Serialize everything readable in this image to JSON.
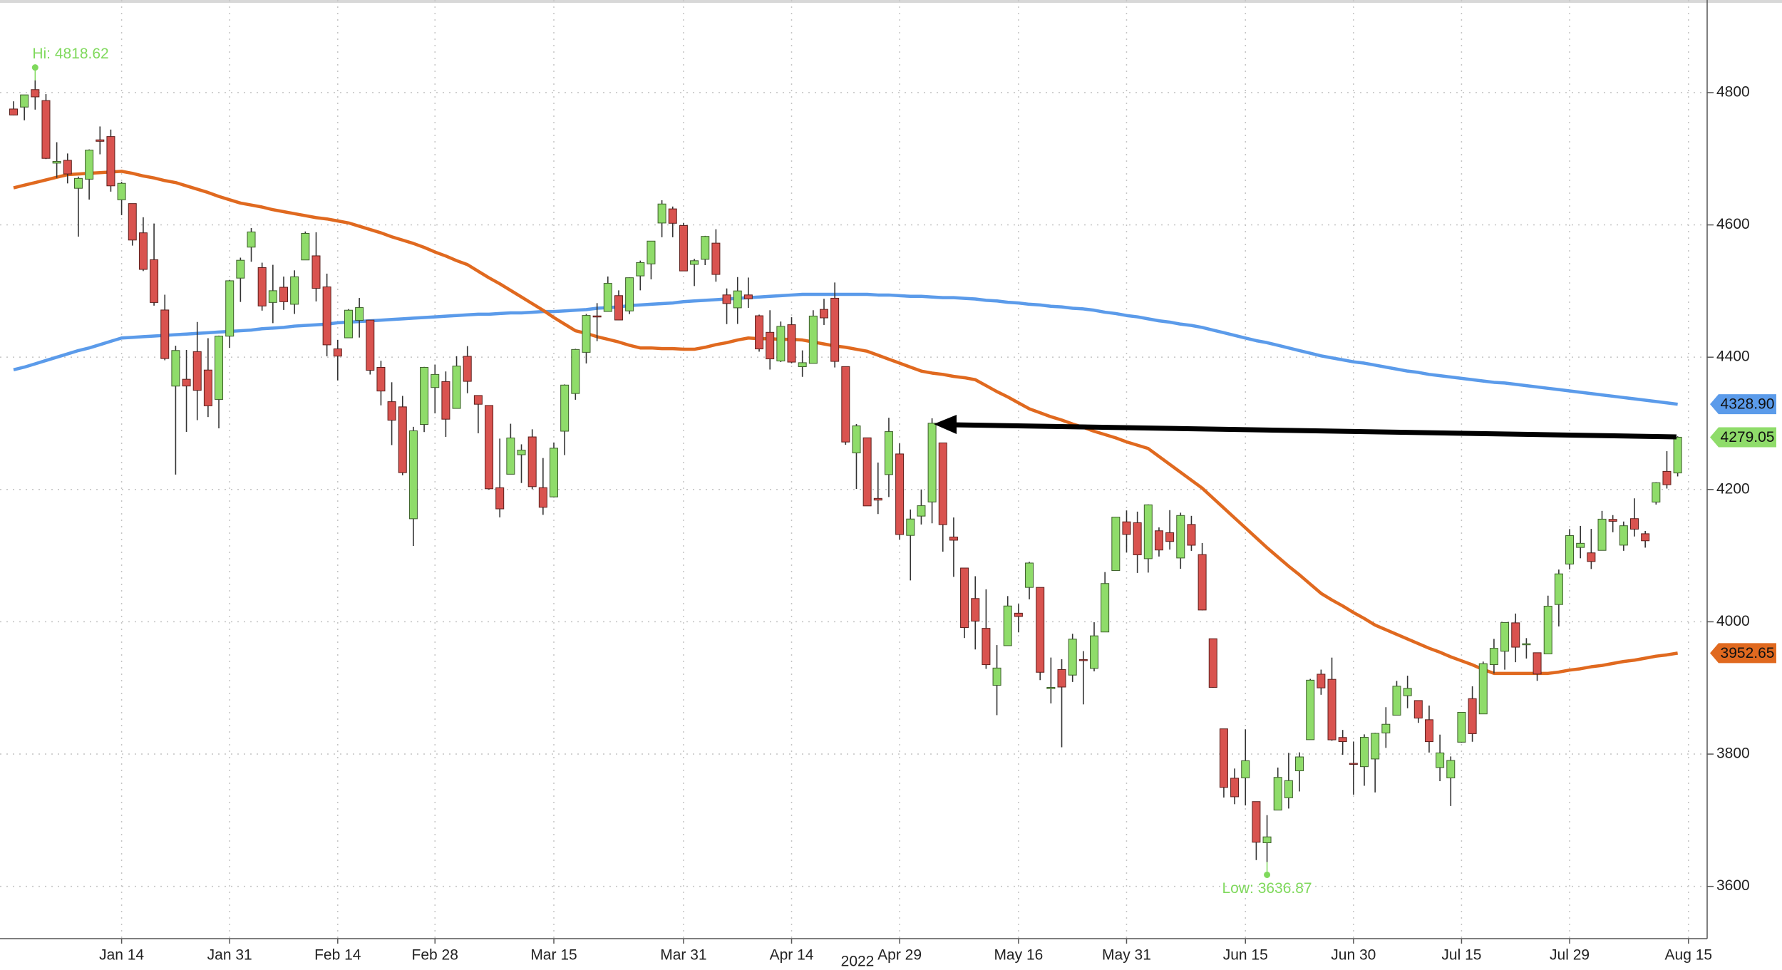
{
  "chart_data": {
    "type": "candlestick",
    "xlabel": "2022",
    "categories": [
      null,
      null,
      null,
      null,
      null,
      null,
      null,
      null,
      null,
      null,
      "Jan 14",
      null,
      null,
      null,
      null,
      null,
      null,
      null,
      null,
      null,
      "Jan 31",
      null,
      null,
      null,
      null,
      null,
      null,
      null,
      null,
      null,
      "Feb 14",
      null,
      null,
      null,
      null,
      null,
      null,
      null,
      null,
      "Feb 28",
      null,
      null,
      null,
      null,
      null,
      null,
      null,
      null,
      null,
      null,
      "Mar 15",
      null,
      null,
      null,
      null,
      null,
      null,
      null,
      null,
      null,
      null,
      null,
      "Mar 31",
      null,
      null,
      null,
      null,
      null,
      null,
      null,
      null,
      null,
      "Apr 14",
      null,
      null,
      null,
      null,
      null,
      null,
      null,
      null,
      null,
      "Apr 29",
      null,
      null,
      null,
      null,
      null,
      null,
      null,
      null,
      null,
      null,
      "May 16",
      null,
      null,
      null,
      null,
      null,
      null,
      null,
      null,
      null,
      "May 31",
      null,
      null,
      null,
      null,
      null,
      null,
      null,
      null,
      null,
      null,
      "Jun 15",
      null,
      null,
      null,
      null,
      null,
      null,
      null,
      null,
      null,
      "Jun 30",
      null,
      null,
      null,
      null,
      null,
      null,
      null,
      null,
      null,
      "Jul 15",
      null,
      null,
      null,
      null,
      null,
      null,
      null,
      null,
      null,
      "Jul 29",
      null,
      null,
      null,
      null,
      null,
      null,
      null,
      null,
      null,
      null,
      "Aug 15"
    ],
    "open": [
      4775.21,
      4778.14,
      4804.51,
      4787.99,
      4693.39,
      4697.66,
      4655.34,
      4669.14,
      4728.59,
      4733.56,
      4637.99,
      4632.24,
      4588.03,
      4547.35,
      4471.38,
      4356.32,
      4366.64,
      4408.43,
      4380.58,
      4336.19,
      4431.79,
      4519.57,
      4566.39,
      4535.41,
      4482.79,
      4505.75,
      4480.02,
      4547.0,
      4553.24,
      4506.27,
      4412.61,
      4429.28,
      4455.75,
      4456.06,
      4384.57,
      4332.74,
      4324.93,
      4155.77,
      4298.38,
      4354.17,
      4363.14,
      4322.56,
      4401.31,
      4342.12,
      4327.01,
      4202.66,
      4223.1,
      4252.55,
      4279.5,
      4202.75,
      4188.82,
      4288.14,
      4345.11,
      4407.34,
      4462.4,
      4469.1,
      4493.1,
      4469.98,
      4522.91,
      4541.09,
      4602.86,
      4624.2,
      4599.02,
      4540.32,
      4547.97,
      4572.45,
      4494.17,
      4474.65,
      4494.15,
      4462.64,
      4437.59,
      4394.3,
      4449.12,
      4385.63,
      4390.63,
      4472.26,
      4489.17,
      4385.83,
      4255.34,
      4278.14,
      4186.52,
      4222.58,
      4253.75,
      4130.61,
      4159.78,
      4181.18,
      4270.43,
      4128.17,
      4081.27,
      4035.18,
      3990.08,
      3903.95,
      3963.9,
      4013.02,
      4052.0,
      4051.98,
      3899.0,
      3927.76,
      3919.42,
      3942.94,
      3929.59,
      3984.6,
      4077.43,
      4151.09,
      4149.78,
      4095.41,
      4137.57,
      4134.72,
      4096.47,
      4147.12,
      4101.65,
      3974.39,
      3838.15,
      3763.52,
      3764.05,
      3728.18,
      3665.9,
      3715.31,
      3733.89,
      3774.71,
      3821.75,
      3920.76,
      3913.0,
      3825.09,
      3785.99,
      3781.0,
      3792.61,
      3831.98,
      3858.85,
      3888.26,
      3880.94,
      3851.95,
      3779.67,
      3763.99,
      3818.0,
      3883.79,
      3860.73,
      3935.32,
      3955.47,
      3998.43,
      3965.72,
      3953.22,
      3951.43,
      4026.13,
      4087.33,
      4112.38,
      4104.21,
      4107.96,
      4154.85,
      4115.87,
      4155.93,
      4133.11,
      4181.02,
      4227.4,
      4225.02,
      null
    ],
    "high": [
      4786.83,
      4796.64,
      4818.62,
      4797.7,
      4725.01,
      4707.95,
      4673.02,
      4714.13,
      4748.83,
      4744.13,
      4665.13,
      4632.24,
      4611.55,
      4602.11,
      4494.52,
      4417.35,
      4411.01,
      4453.23,
      4428.74,
      4432.72,
      4516.89,
      4550.49,
      4595.31,
      4542.88,
      4539.66,
      4521.86,
      4531.32,
      4590.03,
      4588.92,
      4526.33,
      4426.22,
      4472.77,
      4489.55,
      4456.06,
      4394.6,
      4362.12,
      4341.51,
      4294.73,
      4385.34,
      4388.84,
      4378.45,
      4401.48,
      4416.78,
      4342.12,
      4327.01,
      4276.94,
      4299.4,
      4268.28,
      4291.01,
      4247.57,
      4271.05,
      4358.9,
      4412.67,
      4465.4,
      4481.75,
      4522.0,
      4501.07,
      4520.58,
      4546.03,
      4575.65,
      4637.3,
      4627.77,
      4603.07,
      4548.7,
      4583.5,
      4593.45,
      4503.94,
      4521.16,
      4520.41,
      4464.35,
      4471.0,
      4453.92,
      4460.46,
      4410.31,
      4471.03,
      4488.29,
      4512.94,
      4385.83,
      4299.02,
      4278.14,
      4240.71,
      4308.45,
      4269.68,
      4169.81,
      4200.1,
      4307.66,
      4270.43,
      4157.69,
      4081.27,
      4068.82,
      4049.09,
      3964.8,
      4038.88,
      4026.97,
      4090.72,
      4051.98,
      3945.96,
      3943.42,
      3981.88,
      3955.68,
      3999.33,
      4075.14,
      4158.49,
      4168.34,
      4166.54,
      4177.51,
      4142.67,
      4168.78,
      4164.86,
      4160.14,
      4119.1,
      3974.39,
      3838.15,
      3778.18,
      3837.56,
      3728.18,
      3707.71,
      3779.65,
      3801.79,
      3802.58,
      3913.65,
      3927.72,
      3945.86,
      3836.5,
      3818.99,
      3829.82,
      3832.19,
      3870.91,
      3910.63,
      3918.5,
      3880.94,
      3873.41,
      3829.44,
      3796.41,
      3863.62,
      3902.44,
      3939.81,
      3974.13,
      3999.29,
      4012.44,
      3975.3,
      3953.22,
      4039.56,
      4078.95,
      4140.15,
      4144.95,
      4140.47,
      4167.66,
      4161.29,
      4151.58,
      4186.62,
      4137.3,
      4211.03,
      4257.91,
      4280.47,
      null
    ],
    "low": [
      4765.75,
      4758.17,
      4774.27,
      4699.44,
      4671.26,
      4662.74,
      4582.24,
      4638.27,
      4706.71,
      4650.29,
      4614.75,
      4568.7,
      4530.2,
      4477.95,
      4395.34,
      4222.62,
      4287.11,
      4304.8,
      4309.5,
      4292.46,
      4414.02,
      4483.53,
      4544.32,
      4470.39,
      4451.5,
      4471.47,
      4465.4,
      4547.0,
      4484.31,
      4401.41,
      4364.84,
      4429.28,
      4429.68,
      4373.81,
      4327.22,
      4267.11,
      4221.51,
      4114.65,
      4286.83,
      4315.12,
      4279.54,
      4322.56,
      4345.56,
      4284.98,
      4199.85,
      4157.87,
      4223.1,
      4209.8,
      4200.49,
      4161.72,
      4187.9,
      4251.99,
      4335.65,
      4390.57,
      4424.3,
      4469.1,
      4455.81,
      4465.17,
      4501.07,
      4517.69,
      4581.32,
      4581.32,
      4530.41,
      4507.57,
      4539.21,
      4514.17,
      4450.04,
      4450.3,
      4474.6,
      4408.38,
      4381.34,
      4392.7,
      4390.77,
      4370.3,
      4390.63,
      4448.76,
      4384.47,
      4267.62,
      4200.82,
      4175.04,
      4162.9,
      4188.63,
      4124.28,
      4062.51,
      4147.08,
      4148.91,
      4106.01,
      4067.91,
      3975.48,
      3958.17,
      3928.82,
      3858.87,
      3963.9,
      3983.99,
      4033.93,
      3911.91,
      3876.58,
      3810.32,
      3909.04,
      3875.13,
      3925.03,
      3984.6,
      4077.43,
      4104.88,
      4073.85,
      4074.37,
      4098.67,
      4109.18,
      4080.19,
      4107.2,
      4017.17,
      3900.16,
      3734.3,
      3724.27,
      3722.3,
      3639.77,
      3636.87,
      3715.31,
      3717.69,
      3743.52,
      3821.75,
      3889.66,
      3820.14,
      3799.02,
      3738.67,
      3752.1,
      3742.06,
      3809.37,
      3858.85,
      3869.34,
      3847.22,
      3802.36,
      3759.07,
      3721.56,
      3817.18,
      3818.63,
      3860.73,
      3922.03,
      3927.64,
      3938.85,
      3944.46,
      3910.74,
      3951.43,
      3992.97,
      4079.22,
      4096.02,
      4079.81,
      4107.96,
      4135.42,
      4107.31,
      4128.97,
      4112.09,
      4177.26,
      4201.41,
      4219.78,
      null
    ],
    "close": [
      4766.18,
      4796.56,
      4793.54,
      4700.58,
      4696.05,
      4677.03,
      4670.29,
      4713.07,
      4726.35,
      4659.03,
      4662.85,
      4577.11,
      4532.76,
      4482.73,
      4397.94,
      4410.13,
      4356.45,
      4349.93,
      4326.51,
      4431.85,
      4515.55,
      4546.54,
      4589.38,
      4477.44,
      4500.53,
      4483.87,
      4521.54,
      4587.18,
      4504.08,
      4418.64,
      4401.67,
      4471.07,
      4475.01,
      4380.26,
      4348.87,
      4304.76,
      4225.5,
      4288.7,
      4384.65,
      4373.94,
      4306.26,
      4386.54,
      4363.49,
      4328.87,
      4201.09,
      4170.7,
      4277.88,
      4259.52,
      4204.31,
      4173.11,
      4262.45,
      4357.86,
      4411.67,
      4463.12,
      4461.18,
      4511.61,
      4456.24,
      4520.16,
      4543.06,
      4575.52,
      4631.6,
      4602.45,
      4530.41,
      4545.86,
      4582.64,
      4525.12,
      4481.15,
      4500.21,
      4488.28,
      4412.53,
      4397.45,
      4446.59,
      4392.59,
      4391.69,
      4462.21,
      4459.45,
      4393.66,
      4271.78,
      4296.12,
      4175.2,
      4183.96,
      4287.5,
      4131.93,
      4155.38,
      4175.48,
      4300.17,
      4146.87,
      4123.34,
      3991.24,
      4001.05,
      3935.18,
      3930.08,
      4023.89,
      4008.01,
      4088.85,
      3923.68,
      3900.79,
      3901.36,
      3973.75,
      3941.48,
      3978.73,
      4057.84,
      4158.24,
      4132.15,
      4101.23,
      4176.82,
      4108.54,
      4121.43,
      4160.68,
      4115.77,
      4017.82,
      3900.86,
      3749.63,
      3735.48,
      3789.99,
      3666.77,
      3674.84,
      3764.79,
      3759.89,
      3795.73,
      3911.74,
      3900.11,
      3821.55,
      3818.83,
      3785.38,
      3825.33,
      3831.39,
      3845.08,
      3902.62,
      3899.38,
      3854.43,
      3818.8,
      3801.78,
      3790.38,
      3863.16,
      3830.85,
      3936.69,
      3959.9,
      3998.95,
      3961.63,
      3966.84,
      3921.05,
      4023.61,
      4072.43,
      4130.29,
      4118.63,
      4091.19,
      4155.17,
      4151.94,
      4145.19,
      4140.06,
      4122.47,
      4210.24,
      4207.27,
      4279.05,
      null
    ],
    "up_color": "#8fdc6a",
    "down_color": "#d9534f",
    "series": [
      {
        "color": "#5b9bea",
        "values": [
          4381,
          4385,
          4390,
          4395,
          4400,
          4405,
          4410,
          4414,
          4419,
          4424,
          4429,
          4430,
          4431,
          4432,
          4433,
          4434,
          4435,
          4436,
          4437,
          4438,
          4439,
          4440,
          4441,
          4443,
          4444,
          4445,
          4447,
          4448,
          4449,
          4450,
          4452,
          4453,
          4454,
          4455,
          4456,
          4457,
          4458,
          4459,
          4460,
          4461,
          4462,
          4463,
          4464,
          4465,
          4465,
          4466,
          4467,
          4467,
          4468,
          4469,
          4469,
          4470,
          4471,
          4472,
          4474,
          4475,
          4476,
          4478,
          4479,
          4480,
          4481,
          4482,
          4484,
          4485,
          4486,
          4487,
          4488,
          4489,
          4490,
          4491,
          4492,
          4493,
          4494,
          4495,
          4495,
          4495,
          4495,
          4495,
          4495,
          4495,
          4494,
          4494,
          4493,
          4492,
          4492,
          4491,
          4490,
          4490,
          4489,
          4488,
          4486,
          4485,
          4483,
          4482,
          4480,
          4479,
          4477,
          4476,
          4474,
          4473,
          4471,
          4468,
          4466,
          4463,
          4461,
          4458,
          4455,
          4453,
          4450,
          4448,
          4445,
          4441,
          4437,
          4433,
          4429,
          4425,
          4422,
          4418,
          4414,
          4410,
          4406,
          4402,
          4399,
          4396,
          4393,
          4391,
          4388,
          4385,
          4382,
          4379,
          4377,
          4374,
          4372,
          4370,
          4368,
          4366,
          4364,
          4362,
          4361,
          4359,
          4357,
          4355,
          4353,
          4351,
          4349,
          4347,
          4345,
          4343,
          4341,
          4339,
          4337,
          4335,
          4333,
          4331,
          4328.9,
          null
        ]
      },
      {
        "color": "#e0691f",
        "values": [
          4656,
          4660,
          4664,
          4668,
          4672,
          4676,
          4677,
          4678,
          4679,
          4680,
          4681,
          4678,
          4674,
          4671,
          4667,
          4664,
          4659,
          4654,
          4649,
          4643,
          4638,
          4633,
          4630,
          4627,
          4623,
          4620,
          4617,
          4614,
          4611,
          4609,
          4606,
          4603,
          4598,
          4593,
          4588,
          4582,
          4577,
          4572,
          4566,
          4559,
          4553,
          4546,
          4540,
          4530,
          4520,
          4511,
          4501,
          4491,
          4481,
          4471,
          4460,
          4450,
          4440,
          4436,
          4431,
          4427,
          4423,
          4418,
          4414,
          4414,
          4413,
          4413,
          4412,
          4412,
          4415,
          4419,
          4422,
          4426,
          4429,
          4428,
          4428,
          4427,
          4427,
          4426,
          4423,
          4420,
          4417,
          4415,
          4412,
          4409,
          4403,
          4397,
          4391,
          4385,
          4379,
          4376,
          4374,
          4371,
          4369,
          4366,
          4357,
          4348,
          4340,
          4331,
          4322,
          4316,
          4310,
          4305,
          4299,
          4294,
          4288,
          4283,
          4278,
          4272,
          4267,
          4262,
          4250,
          4238,
          4226,
          4214,
          4202,
          4187,
          4172,
          4157,
          4142,
          4127,
          4112,
          4098,
          4084,
          4071,
          4057,
          4043,
          4033,
          4024,
          4014,
          4005,
          3995,
          3988,
          3981,
          3974,
          3967,
          3960,
          3954,
          3947,
          3941,
          3935,
          3928,
          3922,
          3922,
          3922,
          3922,
          3922,
          3922,
          3924,
          3927,
          3929,
          3932,
          3934,
          3937,
          3940,
          3942,
          3945,
          3948,
          3950,
          3952.65,
          null
        ]
      }
    ],
    "tags": [
      {
        "label": "4328.90",
        "value": 4328.9,
        "color": "#5b9bea"
      },
      {
        "label": "4279.05",
        "value": 4279.05,
        "color": "#8fdc6a"
      },
      {
        "label": "3952.65",
        "value": 3952.65,
        "color": "#e0691f"
      }
    ],
    "annotations": [
      {
        "label": "Hi: 4818.62",
        "value": 4818.62,
        "color": "#7fd95c"
      },
      {
        "label": "Low: 3636.87",
        "value": 3636.87,
        "color": "#7fd95c"
      }
    ],
    "ylim": [
      3521,
      4940
    ],
    "yticks": [
      3600,
      3800,
      4000,
      4200,
      4400,
      4600,
      4800
    ],
    "grid": true
  }
}
